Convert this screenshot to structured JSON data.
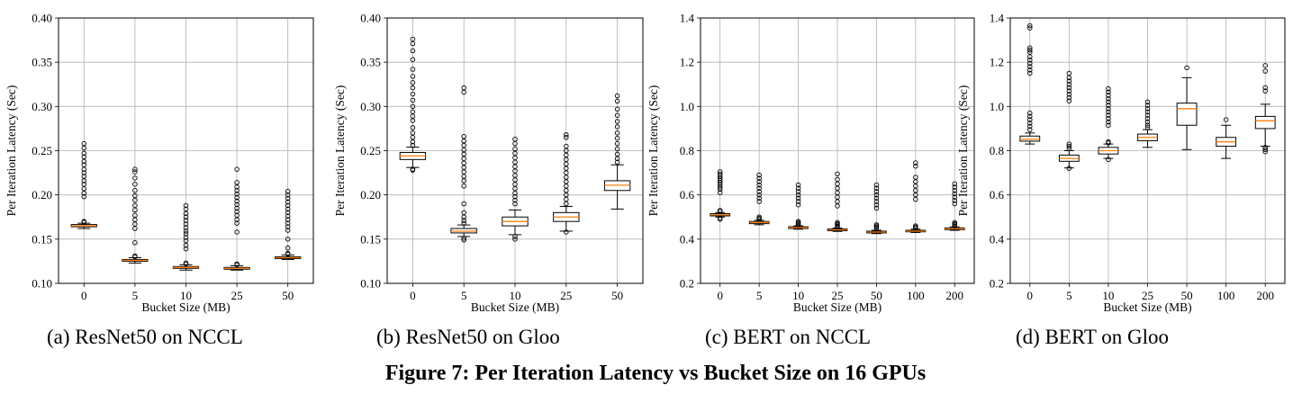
{
  "figure_caption": "Figure 7: Per Iteration Latency vs Bucket Size on 16 GPUs",
  "chart_data": [
    {
      "type": "box",
      "caption": "(a) ResNet50 on NCCL",
      "xlabel": "Bucket Size (MB)",
      "ylabel": "Per Iteration Latency (Sec)",
      "ylim": [
        0.1,
        0.4
      ],
      "yticks": [
        0.1,
        0.15,
        0.2,
        0.25,
        0.3,
        0.35,
        0.4
      ],
      "ytick_labels": [
        "0.10",
        "0.15",
        "0.20",
        "0.25",
        "0.30",
        "0.35",
        "0.40"
      ],
      "grid": true,
      "categories": [
        "0",
        "5",
        "10",
        "25",
        "50"
      ],
      "boxes": [
        {
          "whislo": 0.162,
          "q1": 0.164,
          "med": 0.165,
          "q3": 0.1665,
          "whishi": 0.168,
          "fliers": [
            0.258,
            0.253,
            0.247,
            0.243,
            0.238,
            0.234,
            0.229,
            0.225,
            0.221,
            0.216,
            0.212,
            0.207,
            0.202,
            0.198,
            0.169,
            0.17
          ]
        },
        {
          "whislo": 0.123,
          "q1": 0.125,
          "med": 0.126,
          "q3": 0.127,
          "whishi": 0.129,
          "fliers": [
            0.229,
            0.226,
            0.219,
            0.212,
            0.205,
            0.199,
            0.194,
            0.188,
            0.183,
            0.177,
            0.172,
            0.167,
            0.162,
            0.146,
            0.13,
            0.131
          ]
        },
        {
          "whislo": 0.115,
          "q1": 0.117,
          "med": 0.118,
          "q3": 0.119,
          "whishi": 0.121,
          "fliers": [
            0.188,
            0.184,
            0.179,
            0.175,
            0.171,
            0.167,
            0.163,
            0.159,
            0.156,
            0.152,
            0.148,
            0.143,
            0.139,
            0.122,
            0.123
          ]
        },
        {
          "whislo": 0.115,
          "q1": 0.116,
          "med": 0.117,
          "q3": 0.118,
          "whishi": 0.12,
          "fliers": [
            0.229,
            0.214,
            0.209,
            0.205,
            0.201,
            0.197,
            0.193,
            0.189,
            0.185,
            0.181,
            0.177,
            0.172,
            0.168,
            0.158,
            0.121,
            0.122
          ]
        },
        {
          "whislo": 0.127,
          "q1": 0.128,
          "med": 0.129,
          "q3": 0.13,
          "whishi": 0.132,
          "fliers": [
            0.204,
            0.2,
            0.196,
            0.192,
            0.188,
            0.184,
            0.18,
            0.176,
            0.172,
            0.168,
            0.164,
            0.16,
            0.15,
            0.14,
            0.133,
            0.134
          ]
        }
      ]
    },
    {
      "type": "box",
      "caption": "(b) ResNet50 on Gloo",
      "xlabel": "Bucket Size (MB)",
      "ylabel": "Per Iteration Latency (Sec)",
      "ylim": [
        0.1,
        0.4
      ],
      "yticks": [
        0.1,
        0.15,
        0.2,
        0.25,
        0.3,
        0.35,
        0.4
      ],
      "ytick_labels": [
        "0.10",
        "0.15",
        "0.20",
        "0.25",
        "0.30",
        "0.35",
        "0.40"
      ],
      "grid": true,
      "categories": [
        "0",
        "5",
        "10",
        "25",
        "50"
      ],
      "boxes": [
        {
          "whislo": 0.231,
          "q1": 0.24,
          "med": 0.244,
          "q3": 0.248,
          "whishi": 0.254,
          "fliers": [
            0.376,
            0.371,
            0.363,
            0.353,
            0.342,
            0.334,
            0.327,
            0.321,
            0.314,
            0.307,
            0.3,
            0.294,
            0.289,
            0.284,
            0.276,
            0.27,
            0.265,
            0.26,
            0.256,
            0.229,
            0.228
          ]
        },
        {
          "whislo": 0.153,
          "q1": 0.157,
          "med": 0.159,
          "q3": 0.162,
          "whishi": 0.166,
          "fliers": [
            0.321,
            0.316,
            0.266,
            0.261,
            0.256,
            0.251,
            0.246,
            0.241,
            0.236,
            0.231,
            0.226,
            0.221,
            0.216,
            0.21,
            0.19,
            0.18,
            0.175,
            0.171,
            0.168,
            0.151,
            0.149
          ]
        },
        {
          "whislo": 0.155,
          "q1": 0.165,
          "med": 0.17,
          "q3": 0.175,
          "whishi": 0.183,
          "fliers": [
            0.263,
            0.258,
            0.252,
            0.247,
            0.242,
            0.237,
            0.232,
            0.227,
            0.222,
            0.217,
            0.212,
            0.207,
            0.202,
            0.198,
            0.194,
            0.19,
            0.153,
            0.15
          ]
        },
        {
          "whislo": 0.159,
          "q1": 0.17,
          "med": 0.175,
          "q3": 0.18,
          "whishi": 0.187,
          "fliers": [
            0.268,
            0.265,
            0.255,
            0.25,
            0.245,
            0.24,
            0.235,
            0.23,
            0.225,
            0.22,
            0.215,
            0.21,
            0.205,
            0.2,
            0.195,
            0.19,
            0.158
          ]
        },
        {
          "whislo": 0.184,
          "q1": 0.205,
          "med": 0.211,
          "q3": 0.216,
          "whishi": 0.234,
          "fliers": [
            0.312,
            0.306,
            0.297,
            0.29,
            0.283,
            0.277,
            0.27,
            0.264,
            0.258,
            0.252,
            0.246,
            0.241,
            0.237
          ]
        }
      ]
    },
    {
      "type": "box",
      "caption": "(c) BERT on NCCL",
      "xlabel": "Bucket Size (MB)",
      "ylabel": "Per Iteration Latency (Sec)",
      "ylim": [
        0.2,
        1.4
      ],
      "yticks": [
        0.2,
        0.4,
        0.6,
        0.8,
        1.0,
        1.2,
        1.4
      ],
      "ytick_labels": [
        "0.2",
        "0.4",
        "0.6",
        "0.8",
        "1.0",
        "1.2",
        "1.4"
      ],
      "grid": true,
      "categories": [
        "0",
        "5",
        "10",
        "25",
        "50",
        "100",
        "200"
      ],
      "boxes": [
        {
          "whislo": 0.5,
          "q1": 0.505,
          "med": 0.51,
          "q3": 0.515,
          "whishi": 0.52,
          "fliers": [
            0.705,
            0.695,
            0.685,
            0.675,
            0.665,
            0.655,
            0.645,
            0.635,
            0.625,
            0.61,
            0.53,
            0.525,
            0.495,
            0.49
          ]
        },
        {
          "whislo": 0.465,
          "q1": 0.47,
          "med": 0.475,
          "q3": 0.48,
          "whishi": 0.485,
          "fliers": [
            0.69,
            0.675,
            0.66,
            0.645,
            0.63,
            0.615,
            0.6,
            0.585,
            0.57,
            0.5,
            0.495,
            0.49
          ]
        },
        {
          "whislo": 0.445,
          "q1": 0.448,
          "med": 0.452,
          "q3": 0.456,
          "whishi": 0.46,
          "fliers": [
            0.645,
            0.63,
            0.615,
            0.6,
            0.585,
            0.57,
            0.555,
            0.48,
            0.475,
            0.47,
            0.465
          ]
        },
        {
          "whislo": 0.435,
          "q1": 0.438,
          "med": 0.442,
          "q3": 0.446,
          "whishi": 0.45,
          "fliers": [
            0.695,
            0.67,
            0.65,
            0.63,
            0.61,
            0.59,
            0.57,
            0.55,
            0.475,
            0.47,
            0.465,
            0.46,
            0.455
          ]
        },
        {
          "whislo": 0.425,
          "q1": 0.428,
          "med": 0.432,
          "q3": 0.436,
          "whishi": 0.44,
          "fliers": [
            0.645,
            0.63,
            0.615,
            0.6,
            0.585,
            0.57,
            0.555,
            0.54,
            0.465,
            0.46,
            0.455,
            0.45
          ]
        },
        {
          "whislo": 0.43,
          "q1": 0.433,
          "med": 0.436,
          "q3": 0.44,
          "whishi": 0.445,
          "fliers": [
            0.745,
            0.73,
            0.68,
            0.66,
            0.64,
            0.62,
            0.6,
            0.58,
            0.46,
            0.455,
            0.45
          ]
        },
        {
          "whislo": 0.44,
          "q1": 0.443,
          "med": 0.447,
          "q3": 0.451,
          "whishi": 0.455,
          "fliers": [
            0.65,
            0.635,
            0.62,
            0.605,
            0.59,
            0.575,
            0.56,
            0.475,
            0.47,
            0.465,
            0.46
          ]
        }
      ]
    },
    {
      "type": "box",
      "caption": "(d) BERT on Gloo",
      "xlabel": "Bucket Size (MB)",
      "ylabel": "Per Iteration Latency (Sec)",
      "ylim": [
        0.2,
        1.4
      ],
      "yticks": [
        0.2,
        0.4,
        0.6,
        0.8,
        1.0,
        1.2,
        1.4
      ],
      "ytick_labels": [
        "0.2",
        "0.4",
        "0.6",
        "0.8",
        "1.0",
        "1.2",
        "1.4"
      ],
      "grid": true,
      "categories": [
        "0",
        "5",
        "10",
        "25",
        "50",
        "100",
        "200"
      ],
      "boxes": [
        {
          "whislo": 0.83,
          "q1": 0.843,
          "med": 0.852,
          "q3": 0.866,
          "whishi": 0.88,
          "fliers": [
            1.365,
            1.355,
            1.265,
            1.255,
            1.245,
            1.225,
            1.21,
            1.195,
            1.18,
            1.165,
            1.15,
            0.97,
            0.955,
            0.94,
            0.925,
            0.91,
            0.895
          ]
        },
        {
          "whislo": 0.722,
          "q1": 0.752,
          "med": 0.765,
          "q3": 0.78,
          "whishi": 0.8,
          "fliers": [
            1.15,
            1.13,
            1.115,
            1.1,
            1.085,
            1.07,
            1.055,
            1.04,
            1.025,
            0.83,
            0.82,
            0.81,
            0.72
          ]
        },
        {
          "whislo": 0.765,
          "q1": 0.785,
          "med": 0.8,
          "q3": 0.815,
          "whishi": 0.83,
          "fliers": [
            1.08,
            1.065,
            1.05,
            1.035,
            1.02,
            1.005,
            0.99,
            0.975,
            0.96,
            0.945,
            0.93,
            0.915,
            0.84,
            0.835,
            0.76
          ]
        },
        {
          "whislo": 0.815,
          "q1": 0.845,
          "med": 0.86,
          "q3": 0.875,
          "whishi": 0.895,
          "fliers": [
            1.02,
            1.005,
            0.99,
            0.975,
            0.96,
            0.945,
            0.93,
            0.915,
            0.905
          ]
        },
        {
          "whislo": 0.805,
          "q1": 0.915,
          "med": 0.99,
          "q3": 1.015,
          "whishi": 1.13,
          "fliers": [
            1.175
          ]
        },
        {
          "whislo": 0.765,
          "q1": 0.82,
          "med": 0.84,
          "q3": 0.86,
          "whishi": 0.915,
          "fliers": [
            0.94
          ]
        },
        {
          "whislo": 0.82,
          "q1": 0.9,
          "med": 0.935,
          "q3": 0.955,
          "whishi": 1.01,
          "fliers": [
            1.185,
            1.16,
            1.085,
            1.07,
            0.815,
            0.805,
            0.795
          ]
        }
      ]
    }
  ]
}
